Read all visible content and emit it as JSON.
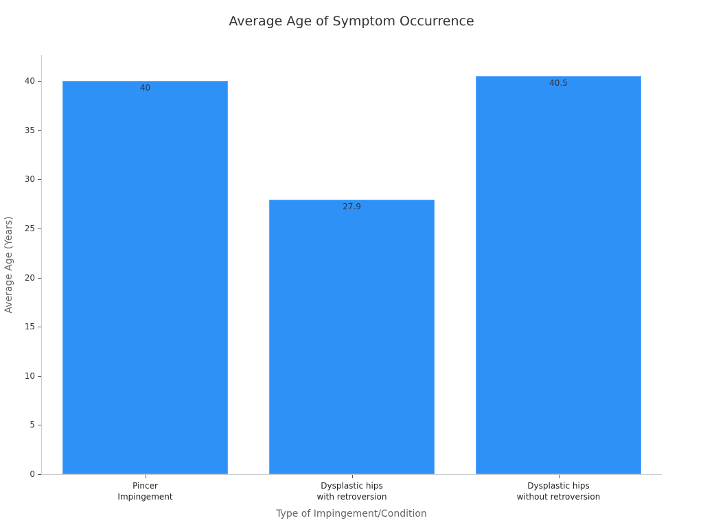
{
  "chart_data": {
    "type": "bar",
    "title": "Average Age of Symptom Occurrence",
    "xlabel": "Type of Impingement/Condition",
    "ylabel": "Average Age (Years)",
    "categories": [
      "Pincer Impingement",
      "Dysplastic hips with retroversion",
      "Dysplastic hips without retroversion"
    ],
    "category_lines": [
      [
        "Pincer",
        "Impingement"
      ],
      [
        "Dysplastic hips",
        "with retroversion"
      ],
      [
        "Dysplastic hips",
        "without retroversion"
      ]
    ],
    "values": [
      40,
      27.9,
      40.5
    ],
    "value_labels": [
      "40",
      "27.9",
      "40.5"
    ],
    "yticks": [
      "0",
      "5",
      "10",
      "15",
      "20",
      "25",
      "30",
      "35",
      "40"
    ],
    "ylim": [
      0,
      42.6
    ],
    "grid": false,
    "legend": null,
    "bar_color": "#2e91f8"
  }
}
